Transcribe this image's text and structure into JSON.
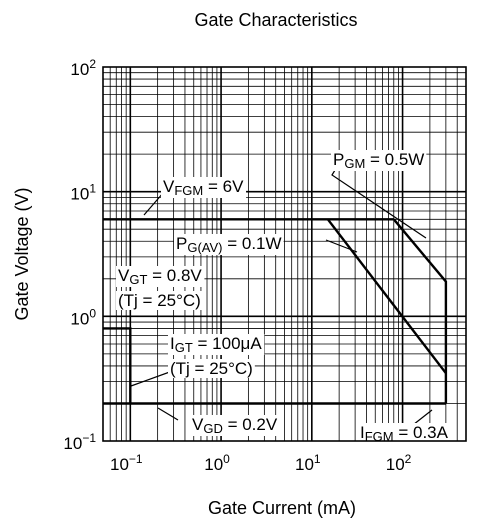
{
  "chart_data": {
    "type": "line",
    "title": "Gate Characteristics",
    "xlabel": "Gate Current  (mA)",
    "ylabel": "Gate Voltage  (V)",
    "x_scale": "log",
    "y_scale": "log",
    "xlim": [
      0.05,
      500
    ],
    "ylim": [
      0.1,
      100
    ],
    "grid": true,
    "x_ticks": [
      {
        "value": 0.1,
        "base": "10",
        "exp": "−1"
      },
      {
        "value": 1,
        "base": "10",
        "exp": "0"
      },
      {
        "value": 10,
        "base": "10",
        "exp": "1"
      },
      {
        "value": 100,
        "base": "10",
        "exp": "2"
      }
    ],
    "y_ticks": [
      {
        "value": 0.1,
        "base": "10",
        "exp": "−1"
      },
      {
        "value": 1,
        "base": "10",
        "exp": "0"
      },
      {
        "value": 10,
        "base": "10",
        "exp": "1"
      },
      {
        "value": 100,
        "base": "10",
        "exp": "2"
      }
    ],
    "curves": [
      {
        "id": "vfgm",
        "x": [
          0.05,
          80
        ],
        "y": [
          6,
          6
        ]
      },
      {
        "id": "pgm",
        "x": [
          80,
          300,
          300
        ],
        "y": [
          6,
          1.9,
          0.2
        ]
      },
      {
        "id": "pgav",
        "x": [
          15,
          300
        ],
        "y": [
          6,
          0.35
        ]
      },
      {
        "id": "vgt",
        "x": [
          0.05,
          0.1,
          0.1
        ],
        "y": [
          0.8,
          0.8,
          0.2
        ]
      },
      {
        "id": "vgd",
        "x": [
          0.05,
          300
        ],
        "y": [
          0.2,
          0.2
        ]
      }
    ],
    "annotations": [
      {
        "id": "vfgm",
        "main": "V",
        "sub": "FGM",
        "rest": " = 6V"
      },
      {
        "id": "pgm",
        "main": "P",
        "sub": "GM",
        "rest": " = 0.5W"
      },
      {
        "id": "pgav",
        "main": "P",
        "sub": "G(AV)",
        "rest": " = 0.1W"
      },
      {
        "id": "vgt",
        "main": "V",
        "sub": "GT",
        "rest": " = 0.8V"
      },
      {
        "id": "vgt_cond",
        "text": "(Tj = 25°C)"
      },
      {
        "id": "igt",
        "main": "I",
        "sub": "GT",
        "rest": " = 100μA"
      },
      {
        "id": "igt_cond",
        "text": "(Tj = 25°C)"
      },
      {
        "id": "vgd",
        "main": "V",
        "sub": "GD",
        "rest": " = 0.2V"
      },
      {
        "id": "ifgm",
        "main": "I",
        "sub": "FGM",
        "rest": " = 0.3A"
      }
    ]
  }
}
